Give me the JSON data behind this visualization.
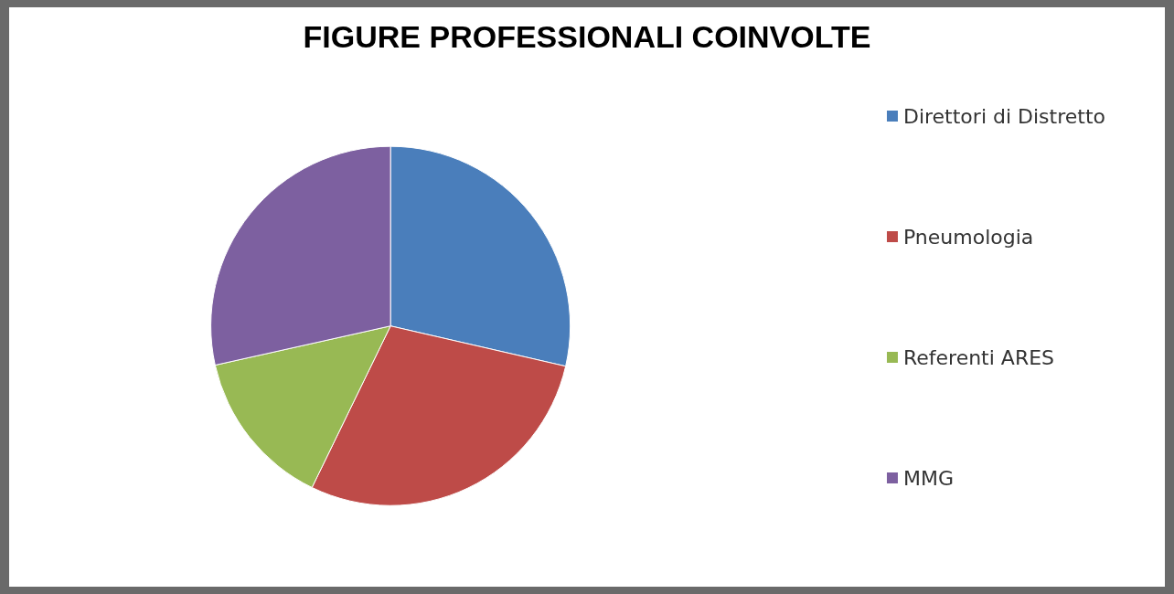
{
  "chart_data": {
    "type": "pie",
    "title": "FIGURE PROFESSIONALI COINVOLTE",
    "categories": [
      "Direttori di Distretto",
      "Pneumologia",
      "Referenti ARES",
      "MMG"
    ],
    "values": [
      28.6,
      28.6,
      14.3,
      28.5
    ],
    "colors": [
      "#4a7ebb",
      "#be4b48",
      "#98b954",
      "#7d60a0"
    ],
    "legend": "right"
  }
}
